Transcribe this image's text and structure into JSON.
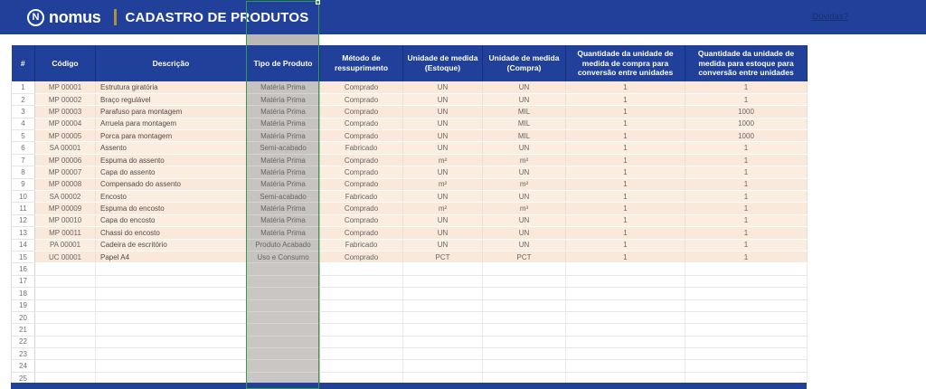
{
  "header": {
    "brand": "nomus",
    "logo_monogram": "N",
    "title": "CADASTRO DE PRODUTOS",
    "help_link": "Dúvidas?"
  },
  "colors": {
    "app_blue": "#21409A",
    "gold_accent": "#B18F35",
    "cell_peach": "#FBEDE0",
    "selected_column_gray": "#C6C3C0",
    "selection_green": "#2E9E4B"
  },
  "table": {
    "selected_column": "Tipo de Produto",
    "columns": [
      {
        "key": "num",
        "label": "#"
      },
      {
        "key": "codigo",
        "label": "Código"
      },
      {
        "key": "descricao",
        "label": "Descrição"
      },
      {
        "key": "tipo",
        "label": "Tipo de Produto"
      },
      {
        "key": "metodo",
        "label": "Método de ressuprimento"
      },
      {
        "key": "um_estoque",
        "label": "Unidade de medida (Estoque)"
      },
      {
        "key": "um_compra",
        "label": "Unidade de medida (Compra)"
      },
      {
        "key": "qtd_compra",
        "label": "Quantidade da unidade de medida de compra para conversão entre unidades"
      },
      {
        "key": "qtd_estoque",
        "label": "Quantidade da unidade de medida para estoque para conversão entre unidades"
      }
    ],
    "rows": [
      [
        "1",
        "MP 00001",
        "Estrutura giratória",
        "Matéria Prima",
        "Comprado",
        "UN",
        "UN",
        "1",
        "1"
      ],
      [
        "2",
        "MP 00002",
        "Braço regulável",
        "Matéria Prima",
        "Comprado",
        "UN",
        "UN",
        "1",
        "1"
      ],
      [
        "3",
        "MP 00003",
        "Parafuso para montagem",
        "Matéria Prima",
        "Comprado",
        "UN",
        "MIL",
        "1",
        "1000"
      ],
      [
        "4",
        "MP 00004",
        "Arruela para montagem",
        "Matéria Prima",
        "Comprado",
        "UN",
        "MIL",
        "1",
        "1000"
      ],
      [
        "5",
        "MP 00005",
        "Porca para montagem",
        "Matéria Prima",
        "Comprado",
        "UN",
        "MIL",
        "1",
        "1000"
      ],
      [
        "6",
        "SA 00001",
        "Assento",
        "Semi-acabado",
        "Fabricado",
        "UN",
        "UN",
        "1",
        "1"
      ],
      [
        "7",
        "MP 00006",
        "Espuma do assento",
        "Matéria Prima",
        "Comprado",
        "m²",
        "m²",
        "1",
        "1"
      ],
      [
        "8",
        "MP 00007",
        "Capa do assento",
        "Matéria Prima",
        "Comprado",
        "UN",
        "UN",
        "1",
        "1"
      ],
      [
        "9",
        "MP 00008",
        "Compensado do assento",
        "Matéria Prima",
        "Comprado",
        "m²",
        "m²",
        "1",
        "1"
      ],
      [
        "10",
        "SA 00002",
        "Encosto",
        "Semi-acabado",
        "Fabricado",
        "UN",
        "UN",
        "1",
        "1"
      ],
      [
        "11",
        "MP 00009",
        "Espuma do encosto",
        "Matéria Prima",
        "Comprado",
        "m²",
        "m³",
        "1",
        "1"
      ],
      [
        "12",
        "MP 00010",
        "Capa do encosto",
        "Matéria Prima",
        "Comprado",
        "UN",
        "UN",
        "1",
        "1"
      ],
      [
        "13",
        "MP 00011",
        "Chassi do encosto",
        "Matéria Prima",
        "Comprado",
        "UN",
        "UN",
        "1",
        "1"
      ],
      [
        "14",
        "PA 00001",
        "Cadeira de escritório",
        "Produto Acabado",
        "Fabricado",
        "UN",
        "UN",
        "1",
        "1"
      ],
      [
        "15",
        "UC 00001",
        "Papel A4",
        "Uso e Consumo",
        "Comprado",
        "PCT",
        "PCT",
        "1",
        "1"
      ]
    ],
    "empty_row_numbers": [
      "16",
      "17",
      "18",
      "19",
      "20",
      "21",
      "22",
      "23",
      "24",
      "25"
    ]
  }
}
